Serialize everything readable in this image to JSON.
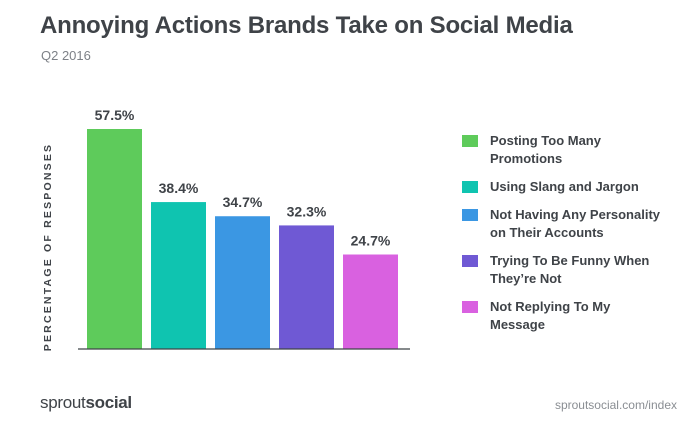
{
  "title": "Annoying Actions Brands Take on Social Media",
  "subtitle": "Q2 2016",
  "chart_data": {
    "type": "bar",
    "title": "Annoying Actions Brands Take on Social Media",
    "subtitle": "Q2 2016",
    "ylabel": "PERCENTAGE OF RESPONSES",
    "categories": [
      "Posting Too Many Promotions",
      "Using Slang and Jargon",
      "Not Having Any Personality on Their Accounts",
      "Trying To Be Funny When They're Not",
      "Not Replying To My Message"
    ],
    "values": [
      57.5,
      38.4,
      34.7,
      32.3,
      24.7
    ],
    "data_labels": [
      "57.5%",
      "38.4%",
      "34.7%",
      "32.3%",
      "24.7%"
    ],
    "colors": [
      "#5ecb5b",
      "#0fc4b0",
      "#3b97e3",
      "#6f59d4",
      "#d961e0"
    ],
    "ylim": [
      0,
      57.5
    ],
    "legend_position": "right",
    "grid": false
  },
  "legend": [
    {
      "lines": [
        "Posting Too Many",
        "Promotions"
      ],
      "color": "#5ecb5b"
    },
    {
      "lines": [
        "Using Slang and Jargon"
      ],
      "color": "#0fc4b0"
    },
    {
      "lines": [
        "Not Having Any Personality",
        "on Their Accounts"
      ],
      "color": "#3b97e3"
    },
    {
      "lines": [
        "Trying To Be Funny When",
        "They’re Not"
      ],
      "color": "#6f59d4"
    },
    {
      "lines": [
        "Not Replying To My",
        "Message"
      ],
      "color": "#d961e0"
    }
  ],
  "footer": {
    "logo_part1": "sprout",
    "logo_part2": "social",
    "url": "sproutsocial.com/index"
  }
}
